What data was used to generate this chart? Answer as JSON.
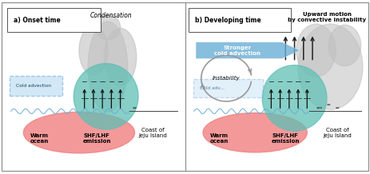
{
  "fig_width": 4.63,
  "fig_height": 2.18,
  "dpi": 100,
  "bg_color": "#ffffff",
  "panel_bg": "#ffffff",
  "panel_a": {
    "title": "a) Onset time",
    "condensation_text": "Condensation",
    "cold_adv_text": "Cold advection",
    "warm_ocean_text": "Warm\nocean",
    "shf_text": "SHF/LHF\nemission",
    "coast_text": "Coast of\nJeju Island"
  },
  "panel_b": {
    "title": "b) Developing time",
    "upward_text": "Upward motion\nby convective instability",
    "stronger_text": "Stronger\ncold advection",
    "instability_text": "Instability",
    "cold_adv_text": "Cold adv...",
    "warm_ocean_text": "Warm\nocean",
    "shf_text": "SHF/LHF\nemission",
    "coast_text": "Coast of\nJeju Island"
  },
  "warm_ocean_color": "#f08080",
  "teal_circle_color": "#5fbfb5",
  "cloud_color": "#c0c0c0",
  "cold_adv_box_color": "#aed6f1",
  "cold_adv_box_edge": "#5b9bd5",
  "blue_arrow_color": "#6baed6",
  "water_line_color": "#6baed6",
  "land_line_color": "#444444",
  "instability_circle_color": "#999999"
}
